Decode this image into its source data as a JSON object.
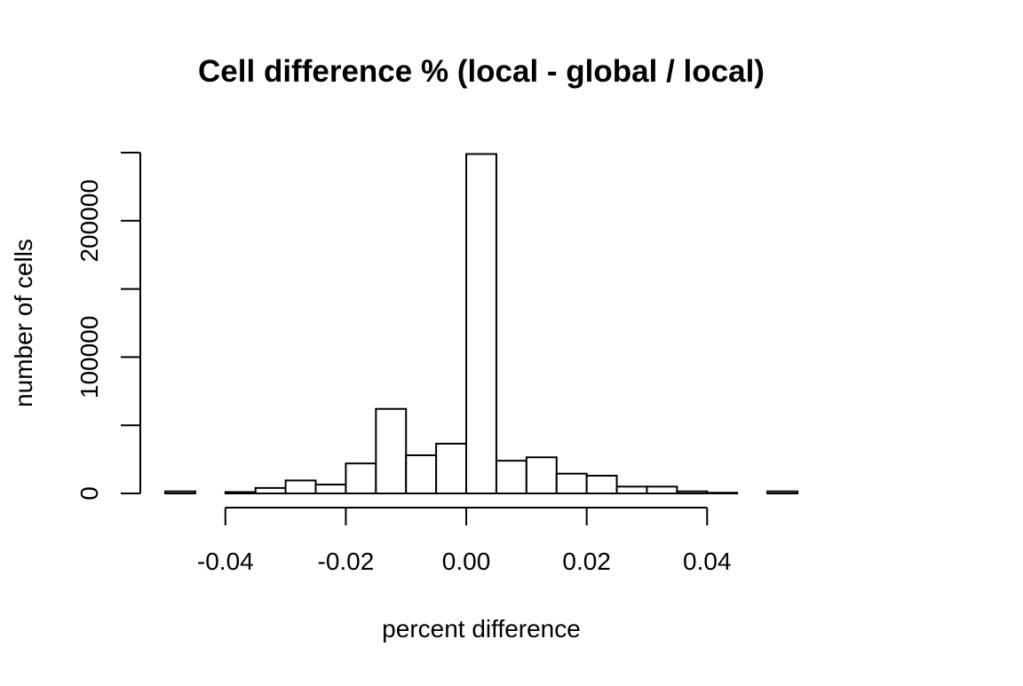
{
  "chart_data": {
    "type": "bar",
    "title": "Cell difference % (local - global / local)",
    "xlabel": "percent difference",
    "ylabel": "number of cells",
    "bin_edges": [
      -0.05,
      -0.045,
      -0.04,
      -0.035,
      -0.03,
      -0.025,
      -0.02,
      -0.015,
      -0.01,
      -0.005,
      0.0,
      0.005,
      0.01,
      0.015,
      0.02,
      0.025,
      0.03,
      0.035,
      0.04,
      0.045,
      0.05,
      0.055
    ],
    "values": [
      1500,
      0,
      1000,
      4000,
      9500,
      6500,
      22000,
      62000,
      28000,
      36500,
      249000,
      24000,
      26500,
      14500,
      13000,
      5000,
      5000,
      1500,
      500,
      0,
      1500
    ],
    "xlim": [
      -0.05,
      0.055
    ],
    "ylim": [
      0,
      250000
    ],
    "x_ticks": [
      -0.04,
      -0.02,
      0.0,
      0.02,
      0.04
    ],
    "x_tick_labels": [
      "-0.04",
      "-0.02",
      "0.00",
      "0.02",
      "0.04"
    ],
    "y_ticks": [
      0,
      50000,
      100000,
      150000,
      200000,
      250000
    ],
    "y_tick_labels": [
      "0",
      "",
      "100000",
      "",
      "200000",
      ""
    ],
    "grid": false,
    "bar_fill": "#ffffff",
    "bar_stroke": "#000000"
  }
}
